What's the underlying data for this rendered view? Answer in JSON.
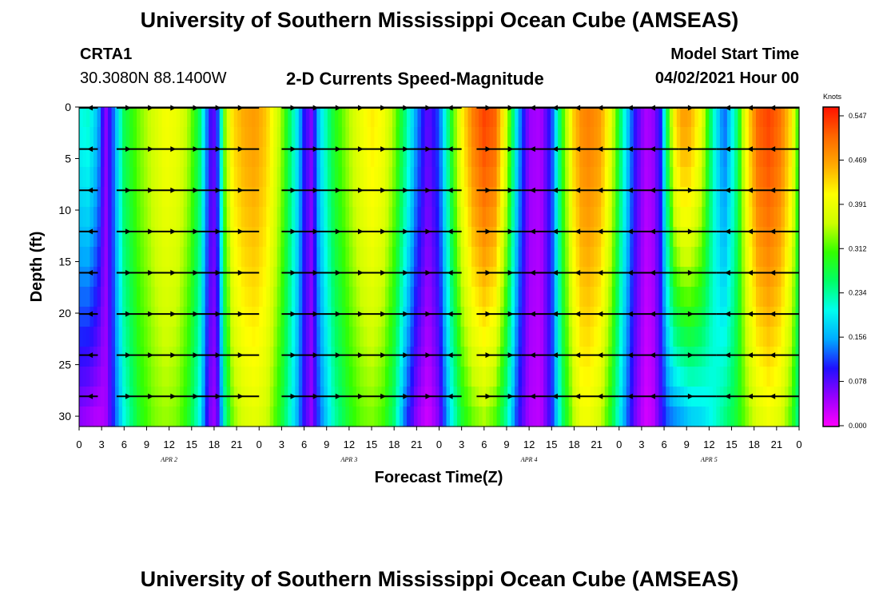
{
  "header": {
    "title": "University of Southern Mississippi Ocean Cube (AMSEAS)",
    "station": "CRTA1",
    "coords": "30.3080N  88.1400W",
    "subtitle": "2-D Currents Speed-Magnitude",
    "model_start_label": "Model Start Time",
    "model_start_value": "04/02/2021 Hour 00"
  },
  "footer": {
    "title": "University of Southern Mississippi Ocean Cube (AMSEAS)"
  },
  "colors": {
    "scale": [
      "#ff00ff",
      "#9900ff",
      "#2010ff",
      "#00aaff",
      "#00ffee",
      "#00ff66",
      "#33ff00",
      "#ccff00",
      "#ffff00",
      "#ffaa00",
      "#ff6600",
      "#ff1100"
    ],
    "arrow": "#000000"
  },
  "chart_data": {
    "type": "heatmap",
    "title": "2-D Currents Speed-Magnitude",
    "xlabel": "Forecast Time(Z)",
    "ylabel": "Depth (ft)",
    "x_hours_range": [
      0,
      96
    ],
    "ylim": [
      0,
      31
    ],
    "x_tick_labels": [
      "0",
      "3",
      "6",
      "9",
      "12",
      "15",
      "18",
      "21",
      "0",
      "3",
      "6",
      "9",
      "12",
      "15",
      "18",
      "21",
      "0",
      "3",
      "6",
      "9",
      "12",
      "15",
      "18",
      "21",
      "0",
      "3",
      "6",
      "9",
      "12",
      "15",
      "18",
      "21",
      "0"
    ],
    "date_labels": [
      {
        "text": "APR  2",
        "hour": 12
      },
      {
        "text": "APR  3",
        "hour": 36
      },
      {
        "text": "APR  4",
        "hour": 60
      },
      {
        "text": "APR  5",
        "hour": 84
      }
    ],
    "y_ticks": [
      0,
      5,
      10,
      15,
      20,
      25,
      30
    ],
    "colorbar": {
      "unit": "Knots",
      "labels": [
        "0.547",
        "0.469",
        "0.391",
        "0.312",
        "0.234",
        "0.156",
        "0.078",
        "0.000"
      ],
      "min": 0.0,
      "max": 0.547
    },
    "speed_profile": {
      "hours": [
        0,
        1.2,
        2.5,
        3.5,
        4.5,
        6,
        8,
        10,
        11.5,
        13,
        14.5,
        16,
        17,
        17.8,
        18.6,
        19.4,
        20.5,
        22,
        23.5,
        25,
        27,
        29,
        30,
        31,
        32,
        34,
        36,
        37.5,
        39,
        40.5,
        42,
        43.5,
        45,
        46.5,
        48,
        49.5,
        51,
        52.5,
        54,
        55.5,
        57,
        58.5,
        60,
        61.5,
        63,
        64.5,
        66,
        67,
        68,
        69.5,
        71,
        72.5,
        74,
        75.5,
        76.5,
        77.5,
        78.5,
        79.5,
        80.5,
        81.5,
        83,
        84.5,
        86,
        87.5,
        89,
        90.5,
        92,
        93.5,
        95,
        96
      ],
      "surface": [
        0.2,
        0.21,
        0.16,
        0.05,
        0.12,
        0.26,
        0.32,
        0.36,
        0.39,
        0.38,
        0.34,
        0.26,
        0.14,
        0.06,
        0.13,
        0.32,
        0.42,
        0.45,
        0.46,
        0.43,
        0.33,
        0.19,
        0.1,
        0.06,
        0.17,
        0.28,
        0.34,
        0.38,
        0.41,
        0.39,
        0.33,
        0.24,
        0.14,
        0.07,
        0.12,
        0.27,
        0.4,
        0.48,
        0.52,
        0.5,
        0.36,
        0.16,
        0.05,
        0.04,
        0.11,
        0.3,
        0.43,
        0.47,
        0.48,
        0.46,
        0.37,
        0.22,
        0.1,
        0.04,
        0.05,
        0.1,
        0.28,
        0.42,
        0.46,
        0.45,
        0.38,
        0.22,
        0.12,
        0.22,
        0.4,
        0.5,
        0.52,
        0.49,
        0.41,
        0.28
      ],
      "bottom": [
        0.05,
        0.04,
        0.03,
        0.04,
        0.1,
        0.2,
        0.28,
        0.32,
        0.33,
        0.32,
        0.28,
        0.2,
        0.1,
        0.04,
        0.08,
        0.22,
        0.32,
        0.36,
        0.37,
        0.35,
        0.27,
        0.16,
        0.09,
        0.05,
        0.12,
        0.22,
        0.28,
        0.31,
        0.32,
        0.3,
        0.24,
        0.12,
        0.05,
        0.02,
        0.06,
        0.18,
        0.27,
        0.31,
        0.33,
        0.3,
        0.22,
        0.1,
        0.04,
        0.03,
        0.1,
        0.25,
        0.34,
        0.38,
        0.38,
        0.35,
        0.27,
        0.16,
        0.07,
        0.02,
        0.03,
        0.08,
        0.12,
        0.13,
        0.14,
        0.16,
        0.17,
        0.2,
        0.24,
        0.27,
        0.32,
        0.36,
        0.38,
        0.36,
        0.3,
        0.22
      ]
    },
    "vector_depths": [
      0,
      4,
      8,
      12,
      16,
      20,
      24,
      28
    ],
    "vector_segments": [
      {
        "start": 0,
        "end": 2.5,
        "dir": -1
      },
      {
        "start": 5,
        "end": 24,
        "dir": 1
      },
      {
        "start": 27,
        "end": 48,
        "dir": 1
      },
      {
        "start": 48,
        "end": 51,
        "dir": -1
      },
      {
        "start": 53,
        "end": 59,
        "dir": 1
      },
      {
        "start": 59,
        "end": 72,
        "dir": -1
      },
      {
        "start": 72,
        "end": 80,
        "dir": -1
      },
      {
        "start": 80,
        "end": 85,
        "dir": 1
      },
      {
        "start": 85,
        "end": 96,
        "dir": -1
      }
    ]
  }
}
